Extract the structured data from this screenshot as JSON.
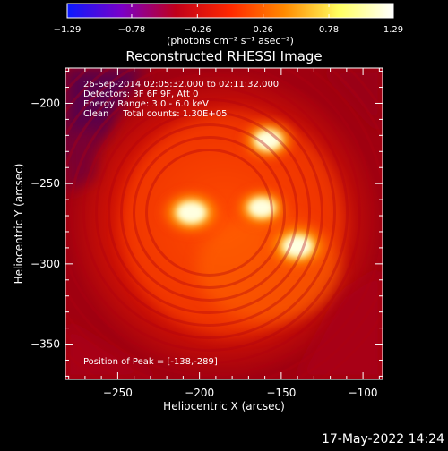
{
  "chart_data": {
    "type": "heatmap",
    "title": "Reconstructed RHESSI Image",
    "xlabel": "Heliocentric X (arcsec)",
    "ylabel": "Heliocentric Y (arcsec)",
    "xlim": [
      -282,
      -88
    ],
    "ylim": [
      -372,
      -178
    ],
    "x_ticks": [
      -250,
      -200,
      -150,
      -100
    ],
    "x_tick_labels": [
      "−250",
      "−200",
      "−150",
      "−100"
    ],
    "y_ticks": [
      -200,
      -250,
      -300,
      -350
    ],
    "y_tick_labels": [
      "−200",
      "−250",
      "−300",
      "−350"
    ],
    "colorbar": {
      "min": -1.29,
      "max": 1.29,
      "ticks": [
        -1.29,
        -0.78,
        -0.26,
        0.26,
        0.78,
        1.29
      ],
      "tick_labels": [
        "−1.29",
        "−0.78",
        "−0.26",
        "0.26",
        "0.78",
        "1.29"
      ],
      "unit_label": "(photons cm⁻² s⁻¹ asec⁻²)",
      "colormap": [
        "#0a1aff",
        "#7a00c8",
        "#c0001a",
        "#ff2800",
        "#ff8a00",
        "#ffff60",
        "#ffffff"
      ]
    },
    "annotations": [
      "26-Sep-2014 02:05:32.000 to 02:11:32.000",
      "Detectors: 3F 6F 9F, Att 0",
      "Energy Range: 3.0 - 6.0 keV",
      "Clean     Total counts: 1.30E+05",
      "Position of Peak = [-138,-289]"
    ],
    "sources": [
      {
        "x": -205,
        "y": -268,
        "peak": 1.0
      },
      {
        "x": -140,
        "y": -289,
        "peak": 1.0
      },
      {
        "x": -158,
        "y": -223,
        "peak": 0.9
      },
      {
        "x": -162,
        "y": -265,
        "peak": 0.88
      }
    ],
    "footer_date": "17-May-2022 14:24"
  }
}
